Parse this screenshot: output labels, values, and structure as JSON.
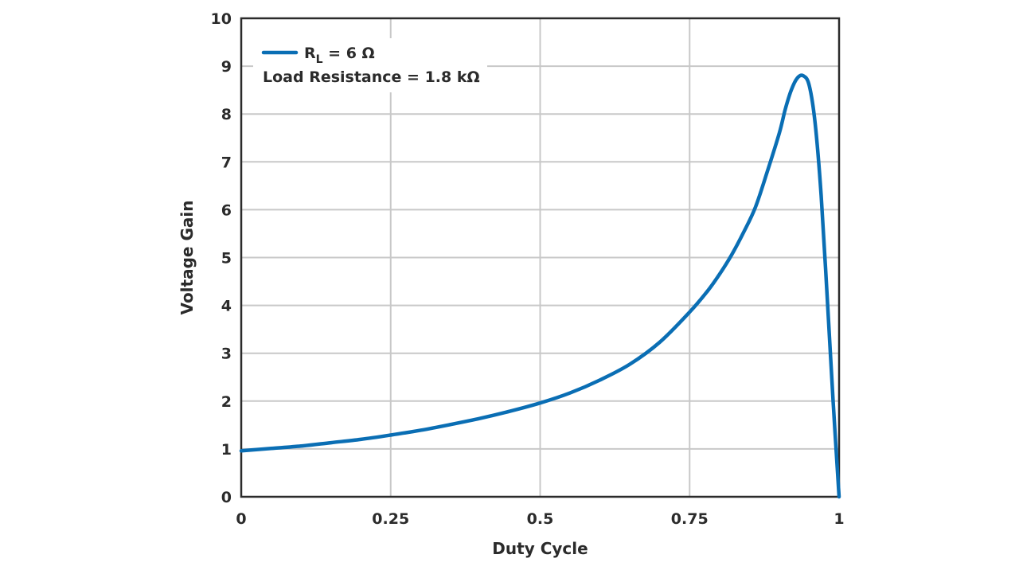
{
  "chart_data": {
    "type": "line",
    "xlabel": "Duty Cycle",
    "ylabel": "Voltage Gain",
    "xlim": [
      0,
      1
    ],
    "ylim": [
      0,
      10
    ],
    "x_ticks": [
      0,
      0.25,
      0.5,
      0.75,
      1
    ],
    "x_tick_labels": [
      "0",
      "0.25",
      "0.5",
      "0.75",
      "1"
    ],
    "y_ticks": [
      0,
      1,
      2,
      3,
      4,
      5,
      6,
      7,
      8,
      9,
      10
    ],
    "y_tick_labels": [
      "0",
      "1",
      "2",
      "3",
      "4",
      "5",
      "6",
      "7",
      "8",
      "9",
      "10"
    ],
    "grid": true,
    "legend": {
      "position": "top-left",
      "entry_main": "R",
      "entry_sub": "L",
      "entry_suffix": " = 6 Ω",
      "note": "Load Resistance = 1.8 kΩ"
    },
    "series": [
      {
        "name": "RL = 6 Ω",
        "color": "#0a6eb4",
        "x": [
          0,
          0.05,
          0.1,
          0.15,
          0.2,
          0.25,
          0.3,
          0.35,
          0.4,
          0.45,
          0.5,
          0.55,
          0.6,
          0.65,
          0.7,
          0.75,
          0.78,
          0.8,
          0.82,
          0.84,
          0.86,
          0.88,
          0.9,
          0.91,
          0.92,
          0.93,
          0.94,
          0.95,
          0.96,
          0.97,
          0.98,
          0.99,
          1.0
        ],
        "y": [
          0.96,
          1.01,
          1.06,
          1.13,
          1.2,
          1.29,
          1.39,
          1.51,
          1.64,
          1.79,
          1.96,
          2.17,
          2.44,
          2.77,
          3.23,
          3.86,
          4.3,
          4.65,
          5.05,
          5.52,
          6.05,
          6.8,
          7.6,
          8.1,
          8.5,
          8.75,
          8.8,
          8.6,
          7.8,
          6.3,
          4.2,
          2.0,
          0.0
        ]
      }
    ]
  }
}
